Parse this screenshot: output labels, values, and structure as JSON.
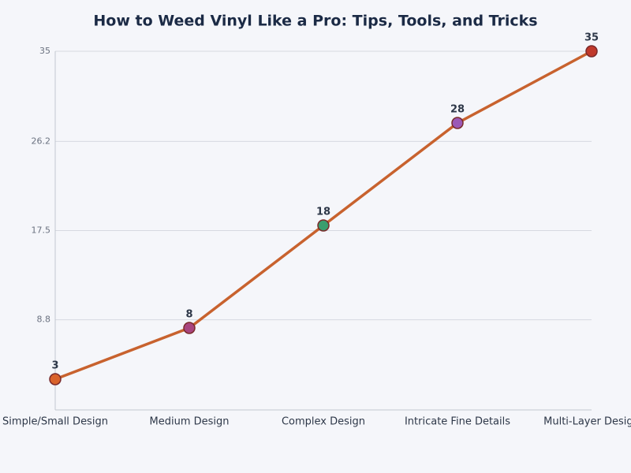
{
  "chart_data": {
    "type": "line",
    "title": "How to Weed Vinyl Like a Pro: Tips, Tools, and Tricks",
    "categories": [
      "Simple/Small Design",
      "Medium Design",
      "Complex Design",
      "Intricate Fine Details",
      "Multi-Layer Design"
    ],
    "values": [
      3,
      8,
      18,
      28,
      35
    ],
    "color": "#c8622e",
    "marker_colors": [
      "#d9622b",
      "#a8457f",
      "#3a9e6e",
      "#9b59b6",
      "#c0392b"
    ],
    "ylim": [
      0,
      35
    ],
    "yticks": [
      8.8,
      17.5,
      26.2,
      35
    ],
    "grid": true
  }
}
